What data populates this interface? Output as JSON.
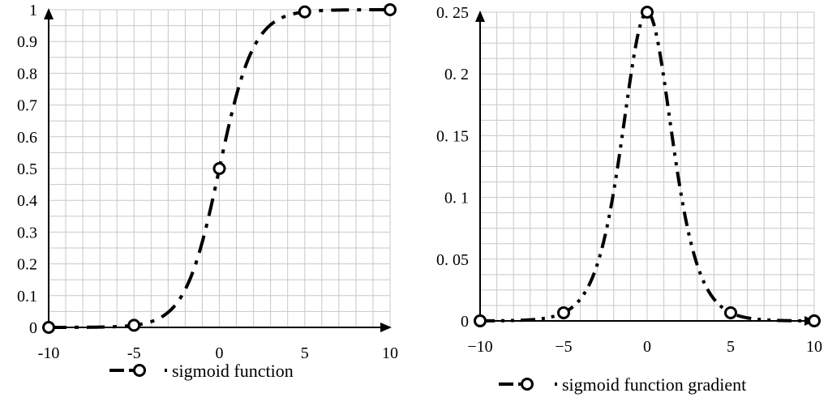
{
  "colors": {
    "line": "#000000",
    "grid": "#c8c8c8",
    "marker_fill": "#ffffff",
    "background": "#ffffff"
  },
  "chart_data": [
    {
      "type": "line",
      "title": "",
      "xlabel": "",
      "ylabel": "",
      "xlim": [
        -10,
        10
      ],
      "ylim": [
        0,
        1
      ],
      "grid": true,
      "legend_position": "bottom",
      "x_ticks": [
        -10,
        -5,
        0,
        5,
        10
      ],
      "x_tick_labels": [
        "-10",
        "-5",
        "0",
        "5",
        "10"
      ],
      "y_ticks": [
        0,
        0.1,
        0.2,
        0.3,
        0.4,
        0.5,
        0.6,
        0.7,
        0.8,
        0.9,
        1
      ],
      "y_tick_labels": [
        "0",
        "0.1",
        "0.2",
        "0.3",
        "0.4",
        "0.5",
        "0.6",
        "0.7",
        "0.8",
        "0.9",
        "1"
      ],
      "series": [
        {
          "name": "sigmoid function",
          "line_style": "dash-dot",
          "marker": "open-circle",
          "x": [
            -10,
            -5,
            0,
            5,
            10
          ],
          "y": [
            4.54e-05,
            0.0067,
            0.5,
            0.9933,
            0.99995
          ]
        }
      ]
    },
    {
      "type": "line",
      "title": "",
      "xlabel": "",
      "ylabel": "",
      "xlim": [
        -10,
        10
      ],
      "ylim": [
        0,
        0.25
      ],
      "grid": true,
      "legend_position": "bottom",
      "x_ticks": [
        -10,
        -5,
        0,
        5,
        10
      ],
      "x_tick_labels": [
        "−10",
        "−5",
        "0",
        "5",
        "10"
      ],
      "y_ticks": [
        0,
        0.05,
        0.1,
        0.15,
        0.2,
        0.25
      ],
      "y_tick_labels": [
        "0",
        "0. 05",
        "0. 1",
        "0. 15",
        "0. 2",
        "0. 25"
      ],
      "series": [
        {
          "name": "sigmoid function gradient",
          "line_style": "dash-dot-dot",
          "marker": "open-circle",
          "x": [
            -10,
            -5,
            0,
            5,
            10
          ],
          "y": [
            4.54e-05,
            0.0066,
            0.25,
            0.0066,
            4.54e-05
          ]
        }
      ]
    }
  ]
}
